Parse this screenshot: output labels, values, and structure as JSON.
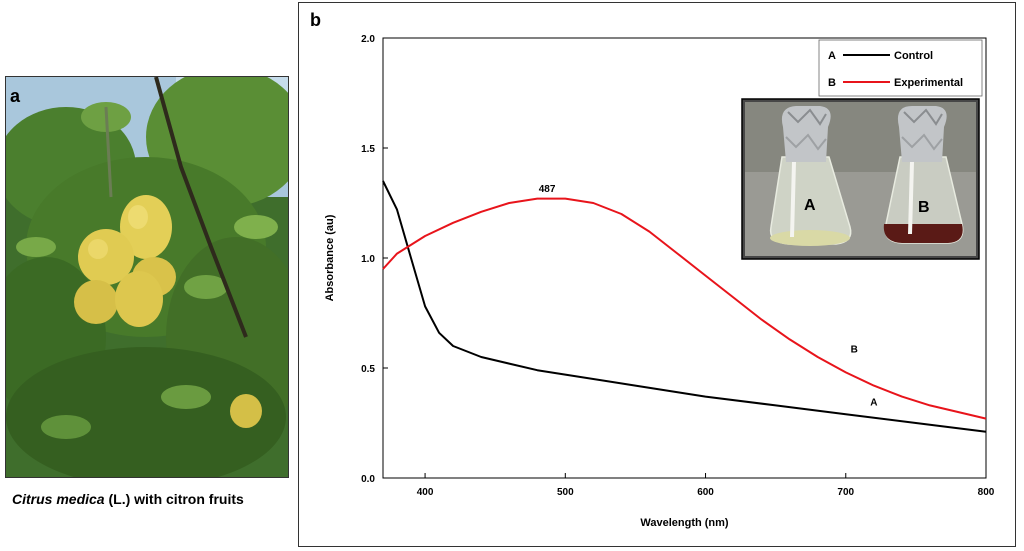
{
  "panel_a": {
    "letter": "a",
    "caption_italic": "Citrus medica",
    "caption_rest": " (L.) with citron fruits"
  },
  "panel_b": {
    "letter": "b"
  },
  "chart_data": {
    "type": "line",
    "xlabel": "Wavelength (nm)",
    "ylabel": "Absorbance (au)",
    "xlim": [
      370,
      800
    ],
    "ylim": [
      0.0,
      2.0
    ],
    "x_ticks": [
      400,
      500,
      600,
      700,
      800
    ],
    "y_ticks": [
      "0.0",
      "0.5",
      "1.0",
      "1.5",
      "2.0"
    ],
    "grid": false,
    "legend_position": "top-right",
    "series": [
      {
        "name": "Control",
        "legend_letter": "A",
        "color": "#000000",
        "x": [
          370,
          380,
          390,
          400,
          410,
          420,
          440,
          460,
          480,
          500,
          550,
          600,
          650,
          700,
          750,
          800
        ],
        "y": [
          1.35,
          1.22,
          1.0,
          0.78,
          0.66,
          0.6,
          0.55,
          0.52,
          0.49,
          0.47,
          0.42,
          0.37,
          0.33,
          0.29,
          0.25,
          0.21
        ]
      },
      {
        "name": "Experimental",
        "legend_letter": "B",
        "color": "#e8141b",
        "x": [
          370,
          380,
          400,
          420,
          440,
          460,
          480,
          487,
          500,
          520,
          540,
          560,
          580,
          600,
          620,
          640,
          660,
          680,
          700,
          720,
          740,
          760,
          780,
          800
        ],
        "y": [
          0.95,
          1.02,
          1.1,
          1.16,
          1.21,
          1.25,
          1.27,
          1.27,
          1.27,
          1.25,
          1.2,
          1.12,
          1.02,
          0.92,
          0.82,
          0.72,
          0.63,
          0.55,
          0.48,
          0.42,
          0.37,
          0.33,
          0.3,
          0.27
        ]
      }
    ],
    "annotations": [
      {
        "text": "487",
        "x": 487,
        "y": 1.3
      },
      {
        "text": "B",
        "x": 706,
        "y": 0.57
      },
      {
        "text": "A",
        "x": 720,
        "y": 0.33
      }
    ],
    "inset_labels": [
      "A",
      "B"
    ]
  },
  "colors": {
    "control": "#000000",
    "experimental": "#e8141b"
  }
}
